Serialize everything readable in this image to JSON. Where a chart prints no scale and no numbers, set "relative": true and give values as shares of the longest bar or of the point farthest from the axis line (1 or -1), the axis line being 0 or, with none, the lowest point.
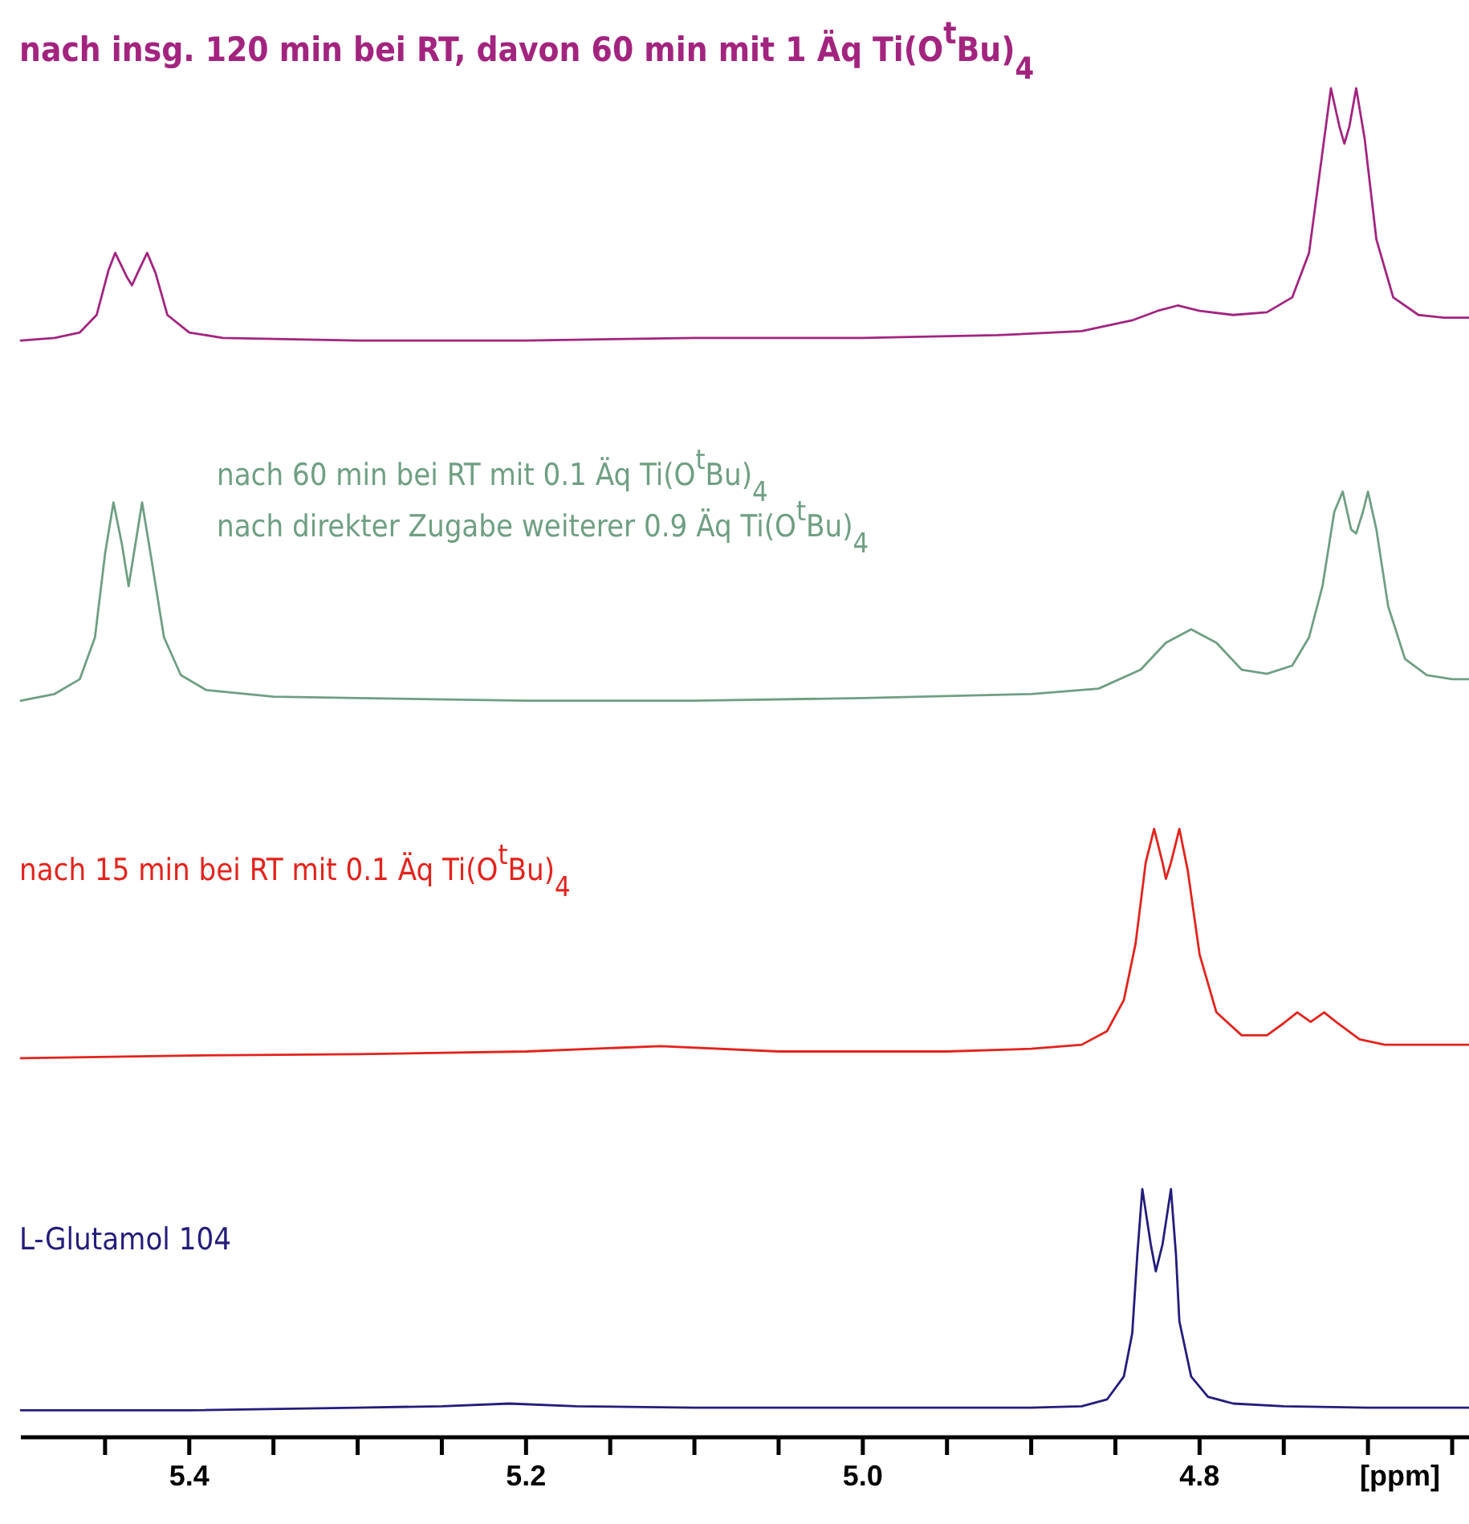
{
  "chart_data": {
    "type": "line",
    "relative": true,
    "xlim": [
      5.5,
      4.64
    ],
    "xlabel": "[ppm]",
    "xticks": [
      {
        "value": 5.45,
        "label": null
      },
      5.4,
      {
        "value": 5.35,
        "label": null
      },
      {
        "value": 5.3,
        "label": null
      },
      {
        "value": 5.25,
        "label": null
      },
      5.2,
      {
        "value": 5.15,
        "label": null
      },
      {
        "value": 5.1,
        "label": null
      },
      {
        "value": 5.05,
        "label": null
      },
      {
        "value": 5.0,
        "label": "5.0"
      },
      {
        "value": 4.95,
        "label": null
      },
      {
        "value": 4.9,
        "label": null
      },
      {
        "value": 4.85,
        "label": null
      },
      4.8,
      {
        "value": 4.75,
        "label": null
      },
      {
        "value": 4.7,
        "label": null
      },
      {
        "value": 4.65,
        "label": null
      }
    ],
    "annotations": [
      "nach direkter Zugabe weiterer 0.9 Äq Ti(O$^{t}$Bu)$_{4}$"
    ],
    "series": [
      {
        "name": "nach insg. 120 min bei RT, davon 60 min mit 1 Äq Ti(O$^{t}$Bu)$_{4}$",
        "color": "#a3247f",
        "x": [
          5.5,
          5.48,
          5.465,
          5.455,
          5.448,
          5.444,
          5.437,
          5.434,
          5.43,
          5.425,
          5.42,
          5.413,
          5.4,
          5.38,
          5.3,
          5.2,
          5.1,
          5.0,
          4.92,
          4.87,
          4.84,
          4.825,
          4.813,
          4.8,
          4.78,
          4.76,
          4.745,
          4.735,
          4.727,
          4.722,
          4.717,
          4.714,
          4.711,
          4.707,
          4.702,
          4.695,
          4.685,
          4.67,
          4.655,
          4.64
        ],
        "values": [
          0.813,
          0.815,
          0.819,
          0.832,
          0.865,
          0.878,
          0.86,
          0.854,
          0.865,
          0.878,
          0.863,
          0.832,
          0.819,
          0.815,
          0.813,
          0.813,
          0.815,
          0.815,
          0.817,
          0.82,
          0.828,
          0.835,
          0.839,
          0.835,
          0.832,
          0.834,
          0.845,
          0.878,
          0.953,
          1,
          0.972,
          0.959,
          0.972,
          1,
          0.963,
          0.888,
          0.845,
          0.832,
          0.83,
          0.83
        ]
      },
      {
        "name": "nach 60 min bei RT mit 0.1 Äq Ti(O$^{t}$Bu)$_{4}$",
        "color": "#6f9f82",
        "x": [
          5.5,
          5.48,
          5.465,
          5.456,
          5.45,
          5.445,
          5.44,
          5.436,
          5.432,
          5.428,
          5.423,
          5.415,
          5.405,
          5.39,
          5.35,
          5.3,
          5.2,
          5.1,
          5.0,
          4.9,
          4.86,
          4.835,
          4.82,
          4.805,
          4.79,
          4.775,
          4.76,
          4.745,
          4.735,
          4.727,
          4.72,
          4.715,
          4.71,
          4.707,
          4.703,
          4.7,
          4.695,
          4.688,
          4.678,
          4.665,
          4.65,
          4.64
        ],
        "values": [
          0.546,
          0.551,
          0.562,
          0.593,
          0.655,
          0.693,
          0.662,
          0.631,
          0.662,
          0.693,
          0.655,
          0.593,
          0.565,
          0.554,
          0.549,
          0.548,
          0.546,
          0.546,
          0.548,
          0.551,
          0.555,
          0.569,
          0.589,
          0.599,
          0.589,
          0.569,
          0.566,
          0.572,
          0.593,
          0.631,
          0.686,
          0.701,
          0.673,
          0.67,
          0.686,
          0.701,
          0.673,
          0.616,
          0.577,
          0.565,
          0.562,
          0.562
        ]
      },
      {
        "name": "nach 15 min bei RT mit 0.1 Äq Ti(O$^{t}$Bu)$_{4}$",
        "color": "#e3231c",
        "x": [
          5.5,
          5.4,
          5.3,
          5.2,
          5.12,
          5.05,
          4.95,
          4.9,
          4.87,
          4.855,
          4.845,
          4.838,
          4.832,
          4.827,
          4.822,
          4.82,
          4.817,
          4.812,
          4.807,
          4.8,
          4.79,
          4.775,
          4.76,
          4.75,
          4.742,
          4.734,
          4.726,
          4.718,
          4.705,
          4.69,
          4.67,
          4.64
        ],
        "values": [
          0.281,
          0.283,
          0.284,
          0.286,
          0.29,
          0.286,
          0.286,
          0.288,
          0.291,
          0.301,
          0.324,
          0.366,
          0.426,
          0.451,
          0.426,
          0.414,
          0.426,
          0.451,
          0.42,
          0.358,
          0.315,
          0.298,
          0.298,
          0.307,
          0.315,
          0.308,
          0.315,
          0.307,
          0.295,
          0.291,
          0.291,
          0.291
        ]
      },
      {
        "name": "L-Glutamol 104",
        "color": "#231d7c",
        "x": [
          5.5,
          5.4,
          5.3,
          5.25,
          5.21,
          5.17,
          5.1,
          5.0,
          4.9,
          4.87,
          4.855,
          4.845,
          4.84,
          4.837,
          4.834,
          4.829,
          4.826,
          4.822,
          4.817,
          4.814,
          4.812,
          4.805,
          4.795,
          4.78,
          4.75,
          4.7,
          4.64
        ],
        "values": [
          0.02,
          0.02,
          0.022,
          0.023,
          0.025,
          0.023,
          0.022,
          0.022,
          0.022,
          0.023,
          0.028,
          0.045,
          0.077,
          0.135,
          0.184,
          0.143,
          0.123,
          0.143,
          0.184,
          0.135,
          0.086,
          0.045,
          0.03,
          0.025,
          0.023,
          0.022,
          0.022
        ]
      }
    ]
  }
}
